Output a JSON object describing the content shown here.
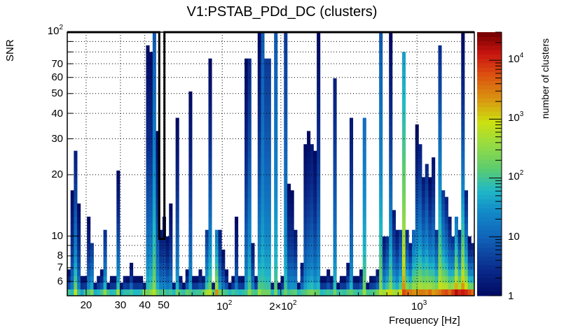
{
  "chart_data": {
    "type": "heatmap",
    "title": "V1:PSTAB_PDd_DC (clusters)",
    "xlabel": "Frequency [Hz]",
    "ylabel": "SNR",
    "zlabel": "number of clusters",
    "x_scale": "log",
    "y_scale": "log",
    "z_scale": "log",
    "xlim": [
      16,
      1970
    ],
    "ylim": [
      5.1,
      100
    ],
    "zlim": [
      1,
      30000
    ],
    "grid": true,
    "x_ticks": [
      {
        "value": 20,
        "label": "20"
      },
      {
        "value": 30,
        "label": "30"
      },
      {
        "value": 40,
        "label": "40"
      },
      {
        "value": 50,
        "label": "50"
      },
      {
        "value": 100,
        "label": "10",
        "exp": "2"
      },
      {
        "value": 200,
        "label": "2×10",
        "exp": "2"
      },
      {
        "value": 1000,
        "label": "10",
        "exp": "3"
      }
    ],
    "y_ticks": [
      {
        "value": 6,
        "label": "6"
      },
      {
        "value": 7,
        "label": "7"
      },
      {
        "value": 8,
        "label": "8"
      },
      {
        "value": 10,
        "label": "10"
      },
      {
        "value": 20,
        "label": "20"
      },
      {
        "value": 30,
        "label": "30"
      },
      {
        "value": 40,
        "label": "40"
      },
      {
        "value": 50,
        "label": "50"
      },
      {
        "value": 60,
        "label": "60"
      },
      {
        "value": 70,
        "label": "70"
      },
      {
        "value": 100,
        "label": "10",
        "exp": "2"
      }
    ],
    "z_ticks": [
      {
        "value": 1,
        "label": "1"
      },
      {
        "value": 10,
        "label": "10"
      },
      {
        "value": 100,
        "label": "10",
        "exp": "2"
      },
      {
        "value": 1000,
        "label": "10",
        "exp": "3"
      },
      {
        "value": 10000,
        "label": "10",
        "exp": "4"
      }
    ],
    "n_columns": 124,
    "n_rows": 40,
    "columns_note": "per frequency bin: max SNR reached, log10 of cluster count in lowest SNR bin, and log10 count at top of column",
    "columns": [
      {
        "snr_max": 7.0,
        "base": 2.0,
        "top": 0.1
      },
      {
        "snr_max": 17.0,
        "base": 1.8,
        "top": 0.0
      },
      {
        "snr_max": 26.0,
        "base": 2.9,
        "top": 0.3
      },
      {
        "snr_max": 14.5,
        "base": 1.9,
        "top": 0.0
      },
      {
        "snr_max": 6.3,
        "base": 1.6,
        "top": 0.1
      },
      {
        "snr_max": 6.3,
        "base": 2.0,
        "top": 0.1
      },
      {
        "snr_max": 12.5,
        "base": 2.1,
        "top": 0.0
      },
      {
        "snr_max": 9.2,
        "base": 2.4,
        "top": 0.6
      },
      {
        "snr_max": 6.0,
        "base": 1.7,
        "top": 0.2
      },
      {
        "snr_max": 6.3,
        "base": 1.8,
        "top": 0.2
      },
      {
        "snr_max": 7.0,
        "base": 2.0,
        "top": 0.1
      },
      {
        "snr_max": 10.5,
        "base": 2.5,
        "top": 0.5
      },
      {
        "snr_max": 6.0,
        "base": 2.0,
        "top": 0.2
      },
      {
        "snr_max": 6.6,
        "base": 1.8,
        "top": 0.1
      },
      {
        "snr_max": 6.6,
        "base": 1.9,
        "top": 0.1
      },
      {
        "snr_max": 21.5,
        "base": 2.6,
        "top": 0.0
      },
      {
        "snr_max": 6.0,
        "base": 1.7,
        "top": 0.2
      },
      {
        "snr_max": 6.3,
        "base": 1.9,
        "top": 0.2
      },
      {
        "snr_max": 6.3,
        "base": 1.9,
        "top": 0.1
      },
      {
        "snr_max": 7.3,
        "base": 2.0,
        "top": 0.1
      },
      {
        "snr_max": 6.3,
        "base": 1.8,
        "top": 0.1
      },
      {
        "snr_max": 6.6,
        "base": 1.8,
        "top": 0.1
      },
      {
        "snr_max": 6.6,
        "base": 1.9,
        "top": 0.1
      },
      {
        "snr_max": 6.0,
        "base": 2.5,
        "top": 0.3
      },
      {
        "snr_max": 88.0,
        "base": 2.3,
        "top": 0.0
      },
      {
        "snr_max": 80.0,
        "base": 2.5,
        "top": 0.0
      },
      {
        "snr_max": 100.0,
        "base": 2.8,
        "top": 0.9
      },
      {
        "snr_max": 33.0,
        "base": 2.2,
        "top": 0.0
      },
      {
        "snr_max": 11.0,
        "base": 2.0,
        "top": 0.2
      },
      {
        "snr_max": 12.5,
        "base": 2.1,
        "top": 0.1
      },
      {
        "snr_max": 10.0,
        "base": 1.9,
        "top": 0.1
      },
      {
        "snr_max": 14.5,
        "base": 2.0,
        "top": 0.0
      },
      {
        "snr_max": 6.0,
        "base": 1.8,
        "top": 0.2
      },
      {
        "snr_max": 39.0,
        "base": 2.3,
        "top": 0.0
      },
      {
        "snr_max": 6.6,
        "base": 2.0,
        "top": 0.2
      },
      {
        "snr_max": 6.0,
        "base": 1.9,
        "top": 0.1
      },
      {
        "snr_max": 7.0,
        "base": 2.2,
        "top": 0.1
      },
      {
        "snr_max": 50.0,
        "base": 2.1,
        "top": 0.0
      },
      {
        "snr_max": 6.3,
        "base": 1.9,
        "top": 0.1
      },
      {
        "snr_max": 6.6,
        "base": 2.0,
        "top": 0.1
      },
      {
        "snr_max": 7.0,
        "base": 2.0,
        "top": 0.1
      },
      {
        "snr_max": 6.6,
        "base": 2.2,
        "top": 0.2
      },
      {
        "snr_max": 10.5,
        "base": 2.7,
        "top": 0.6
      },
      {
        "snr_max": 73.0,
        "base": 2.8,
        "top": 0.0
      },
      {
        "snr_max": 6.0,
        "base": 2.1,
        "top": 0.2
      },
      {
        "snr_max": 10.5,
        "base": 3.4,
        "top": 1.3
      },
      {
        "snr_max": 10.5,
        "base": 2.3,
        "top": 0.3
      },
      {
        "snr_max": 8.5,
        "base": 2.1,
        "top": 0.1
      },
      {
        "snr_max": 7.0,
        "base": 2.0,
        "top": 0.1
      },
      {
        "snr_max": 6.0,
        "base": 1.8,
        "top": 0.1
      },
      {
        "snr_max": 6.3,
        "base": 2.0,
        "top": 0.1
      },
      {
        "snr_max": 12.0,
        "base": 1.9,
        "top": 0.0
      },
      {
        "snr_max": 6.3,
        "base": 1.8,
        "top": 0.2
      },
      {
        "snr_max": 6.6,
        "base": 1.9,
        "top": 0.1
      },
      {
        "snr_max": 74.0,
        "base": 2.0,
        "top": 0.0
      },
      {
        "snr_max": 73.0,
        "base": 2.5,
        "top": 0.4
      },
      {
        "snr_max": 9.0,
        "base": 2.1,
        "top": 0.2
      },
      {
        "snr_max": 6.3,
        "base": 2.0,
        "top": 0.2
      },
      {
        "snr_max": 100.0,
        "base": 2.6,
        "top": 0.0
      },
      {
        "snr_max": 100.0,
        "base": 2.3,
        "top": 0.9
      },
      {
        "snr_max": 72.0,
        "base": 2.3,
        "top": 0.6
      },
      {
        "snr_max": 75.0,
        "base": 2.3,
        "top": 0.6
      },
      {
        "snr_max": 6.0,
        "base": 1.8,
        "top": 0.2
      },
      {
        "snr_max": 100.0,
        "base": 2.4,
        "top": 0.9
      },
      {
        "snr_max": 5.8,
        "base": 1.7,
        "top": 0.1
      },
      {
        "snr_max": 6.3,
        "base": 1.9,
        "top": 0.1
      },
      {
        "snr_max": 100.0,
        "base": 2.3,
        "top": 0.6
      },
      {
        "snr_max": 18.0,
        "base": 2.0,
        "top": 0.0
      },
      {
        "snr_max": 16.5,
        "base": 2.1,
        "top": 0.0
      },
      {
        "snr_max": 10.5,
        "base": 2.2,
        "top": 0.2
      },
      {
        "snr_max": 6.0,
        "base": 1.8,
        "top": 0.1
      },
      {
        "snr_max": 7.3,
        "base": 2.0,
        "top": 0.2
      },
      {
        "snr_max": 29.0,
        "base": 2.1,
        "top": 0.0
      },
      {
        "snr_max": 33.0,
        "base": 2.3,
        "top": 0.0
      },
      {
        "snr_max": 29.0,
        "base": 2.4,
        "top": 0.2
      },
      {
        "snr_max": 27.0,
        "base": 2.2,
        "top": 0.0
      },
      {
        "snr_max": 100.0,
        "base": 2.2,
        "top": 0.0
      },
      {
        "snr_max": 6.3,
        "base": 1.8,
        "top": 0.1
      },
      {
        "snr_max": 6.6,
        "base": 1.9,
        "top": 0.1
      },
      {
        "snr_max": 7.0,
        "base": 2.0,
        "top": 0.1
      },
      {
        "snr_max": 6.3,
        "base": 1.9,
        "top": 0.1
      },
      {
        "snr_max": 60.0,
        "base": 2.3,
        "top": 0.3
      },
      {
        "snr_max": 6.0,
        "base": 1.9,
        "top": 0.1
      },
      {
        "snr_max": 6.3,
        "base": 2.0,
        "top": 0.1
      },
      {
        "snr_max": 6.3,
        "base": 1.9,
        "top": 0.1
      },
      {
        "snr_max": 7.3,
        "base": 2.1,
        "top": 0.1
      },
      {
        "snr_max": 39.0,
        "base": 2.2,
        "top": 0.2
      },
      {
        "snr_max": 6.3,
        "base": 2.0,
        "top": 0.1
      },
      {
        "snr_max": 6.6,
        "base": 1.9,
        "top": 0.1
      },
      {
        "snr_max": 7.0,
        "base": 2.0,
        "top": 0.1
      },
      {
        "snr_max": 39.0,
        "base": 2.6,
        "top": 1.1
      },
      {
        "snr_max": 6.0,
        "base": 2.0,
        "top": 0.1
      },
      {
        "snr_max": 6.6,
        "base": 2.0,
        "top": 0.1
      },
      {
        "snr_max": 6.6,
        "base": 2.1,
        "top": 0.2
      },
      {
        "snr_max": 7.0,
        "base": 2.3,
        "top": 0.2
      },
      {
        "snr_max": 100.0,
        "base": 2.8,
        "top": 0.9
      },
      {
        "snr_max": 9.8,
        "base": 2.6,
        "top": 0.2
      },
      {
        "snr_max": 10.0,
        "base": 2.9,
        "top": 0.5
      },
      {
        "snr_max": 100.0,
        "base": 3.0,
        "top": 0.0
      },
      {
        "snr_max": 13.0,
        "base": 2.7,
        "top": 0.2
      },
      {
        "snr_max": 11.0,
        "base": 2.6,
        "top": 0.2
      },
      {
        "snr_max": 10.5,
        "base": 3.0,
        "top": 0.6
      },
      {
        "snr_max": 79.0,
        "base": 3.8,
        "top": 1.6
      },
      {
        "snr_max": 11.0,
        "base": 3.6,
        "top": 0.4
      },
      {
        "snr_max": 9.5,
        "base": 3.5,
        "top": 0.3
      },
      {
        "snr_max": 10.5,
        "base": 3.4,
        "top": 1.0
      },
      {
        "snr_max": 35.0,
        "base": 3.3,
        "top": 0.0
      },
      {
        "snr_max": 28.0,
        "base": 3.5,
        "top": 0.3
      },
      {
        "snr_max": 19.0,
        "base": 3.5,
        "top": 0.2
      },
      {
        "snr_max": 22.0,
        "base": 3.4,
        "top": 0.4
      },
      {
        "snr_max": 20.0,
        "base": 3.6,
        "top": 0.0
      },
      {
        "snr_max": 25.0,
        "base": 3.3,
        "top": 0.1
      },
      {
        "snr_max": 10.5,
        "base": 3.4,
        "top": 0.5
      },
      {
        "snr_max": 88.0,
        "base": 3.5,
        "top": 0.5
      },
      {
        "snr_max": 17.0,
        "base": 3.7,
        "top": 0.6
      },
      {
        "snr_max": 16.0,
        "base": 3.8,
        "top": 0.3
      },
      {
        "snr_max": 12.0,
        "base": 3.6,
        "top": 0.2
      },
      {
        "snr_max": 10.0,
        "base": 3.9,
        "top": 0.5
      },
      {
        "snr_max": 12.0,
        "base": 4.2,
        "top": 1.2
      },
      {
        "snr_max": 10.5,
        "base": 4.0,
        "top": 0.4
      },
      {
        "snr_max": 100.0,
        "base": 4.1,
        "top": 0.0
      },
      {
        "snr_max": 17.0,
        "base": 4.0,
        "top": 0.3
      },
      {
        "snr_max": 9.8,
        "base": 3.8,
        "top": 0.0
      },
      {
        "snr_max": 9.3,
        "base": 3.6,
        "top": 0.3
      }
    ],
    "overlay_outline": {
      "description": "black contour outlining the high-SNR region at ~49-50 Hz",
      "points": [
        [
          16,
          100
        ],
        [
          47.5,
          100
        ],
        [
          47.5,
          9.7
        ],
        [
          50.5,
          9.7
        ],
        [
          50.5,
          100
        ],
        [
          1970,
          100
        ]
      ]
    }
  }
}
